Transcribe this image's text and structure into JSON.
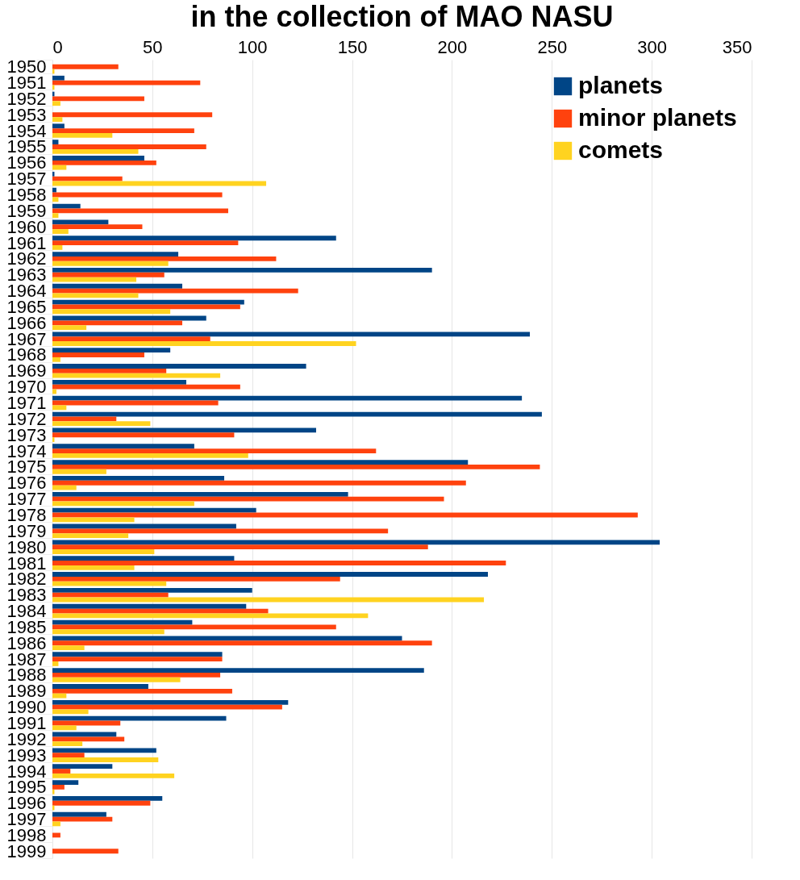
{
  "chart_data": {
    "type": "bar",
    "orientation": "horizontal",
    "title": "in the collection of MAO NASU",
    "categories": [
      "1950",
      "1951",
      "1952",
      "1953",
      "1954",
      "1955",
      "1956",
      "1957",
      "1958",
      "1959",
      "1960",
      "1961",
      "1962",
      "1963",
      "1964",
      "1965",
      "1966",
      "1967",
      "1968",
      "1969",
      "1970",
      "1971",
      "1972",
      "1973",
      "1974",
      "1975",
      "1976",
      "1977",
      "1978",
      "1979",
      "1980",
      "1981",
      "1982",
      "1983",
      "1984",
      "1985",
      "1986",
      "1987",
      "1988",
      "1989",
      "1990",
      "1991",
      "1992",
      "1993",
      "1994",
      "1995",
      "1996",
      "1997",
      "1998",
      "1999"
    ],
    "series": [
      {
        "name": "planets",
        "color": "#004586",
        "values": [
          0,
          6,
          1,
          0,
          6,
          3,
          46,
          1,
          2,
          14,
          28,
          142,
          63,
          190,
          65,
          96,
          77,
          239,
          59,
          127,
          67,
          235,
          245,
          132,
          71,
          208,
          86,
          148,
          102,
          92,
          304,
          91,
          218,
          100,
          97,
          70,
          175,
          85,
          186,
          48,
          118,
          87,
          32,
          52,
          30,
          13,
          55,
          27,
          0,
          0
        ]
      },
      {
        "name": "minor planets",
        "color": "#ff420e",
        "values": [
          33,
          74,
          46,
          80,
          71,
          77,
          52,
          35,
          85,
          88,
          45,
          93,
          112,
          56,
          123,
          94,
          65,
          79,
          46,
          57,
          94,
          83,
          32,
          91,
          162,
          244,
          207,
          196,
          293,
          168,
          188,
          227,
          144,
          58,
          108,
          142,
          190,
          85,
          84,
          90,
          115,
          34,
          36,
          16,
          9,
          6,
          49,
          30,
          4,
          33
        ]
      },
      {
        "name": "comets",
        "color": "#ffd320",
        "values": [
          1,
          1,
          4,
          5,
          30,
          43,
          7,
          107,
          3,
          3,
          8,
          5,
          58,
          42,
          43,
          59,
          17,
          152,
          4,
          84,
          2,
          7,
          49,
          1,
          98,
          27,
          12,
          71,
          41,
          38,
          51,
          41,
          57,
          216,
          158,
          56,
          16,
          3,
          64,
          7,
          18,
          12,
          15,
          53,
          61,
          1,
          1,
          4,
          0,
          0
        ]
      }
    ],
    "xlim": [
      0,
      350
    ],
    "xticks": [
      0,
      50,
      100,
      150,
      200,
      250,
      300,
      350
    ],
    "grid": "x",
    "legend": "top right"
  }
}
